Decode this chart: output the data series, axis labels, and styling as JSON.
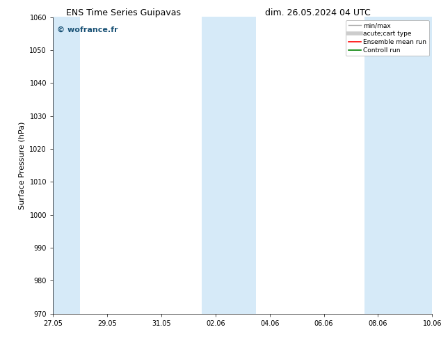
{
  "title_left": "ENS Time Series Guipavas",
  "title_right": "dim. 26.05.2024 04 UTC",
  "ylabel": "Surface Pressure (hPa)",
  "ylim": [
    970,
    1060
  ],
  "yticks": [
    970,
    980,
    990,
    1000,
    1010,
    1020,
    1030,
    1040,
    1050,
    1060
  ],
  "xtick_labels": [
    "27.05",
    "29.05",
    "31.05",
    "02.06",
    "04.06",
    "06.06",
    "08.06",
    "10.06"
  ],
  "xlim": [
    0,
    14
  ],
  "shade_bands": [
    {
      "xmin": 0.0,
      "xmax": 1.0
    },
    {
      "xmin": 5.5,
      "xmax": 7.5
    },
    {
      "xmin": 11.5,
      "xmax": 14.0
    }
  ],
  "shade_color": "#d6eaf8",
  "background_color": "#ffffff",
  "watermark": "© wofrance.fr",
  "watermark_color": "#1a5276",
  "legend_items": [
    {
      "label": "min/max",
      "color": "#aaaaaa",
      "lw": 1.0,
      "linestyle": "-"
    },
    {
      "label": "acute;cart type",
      "color": "#cccccc",
      "lw": 4,
      "linestyle": "-"
    },
    {
      "label": "Ensemble mean run",
      "color": "red",
      "lw": 1.2,
      "linestyle": "-"
    },
    {
      "label": "Controll run",
      "color": "green",
      "lw": 1.2,
      "linestyle": "-"
    }
  ],
  "title_fontsize": 9,
  "label_fontsize": 8,
  "tick_fontsize": 7,
  "watermark_fontsize": 8,
  "legend_fontsize": 6.5
}
